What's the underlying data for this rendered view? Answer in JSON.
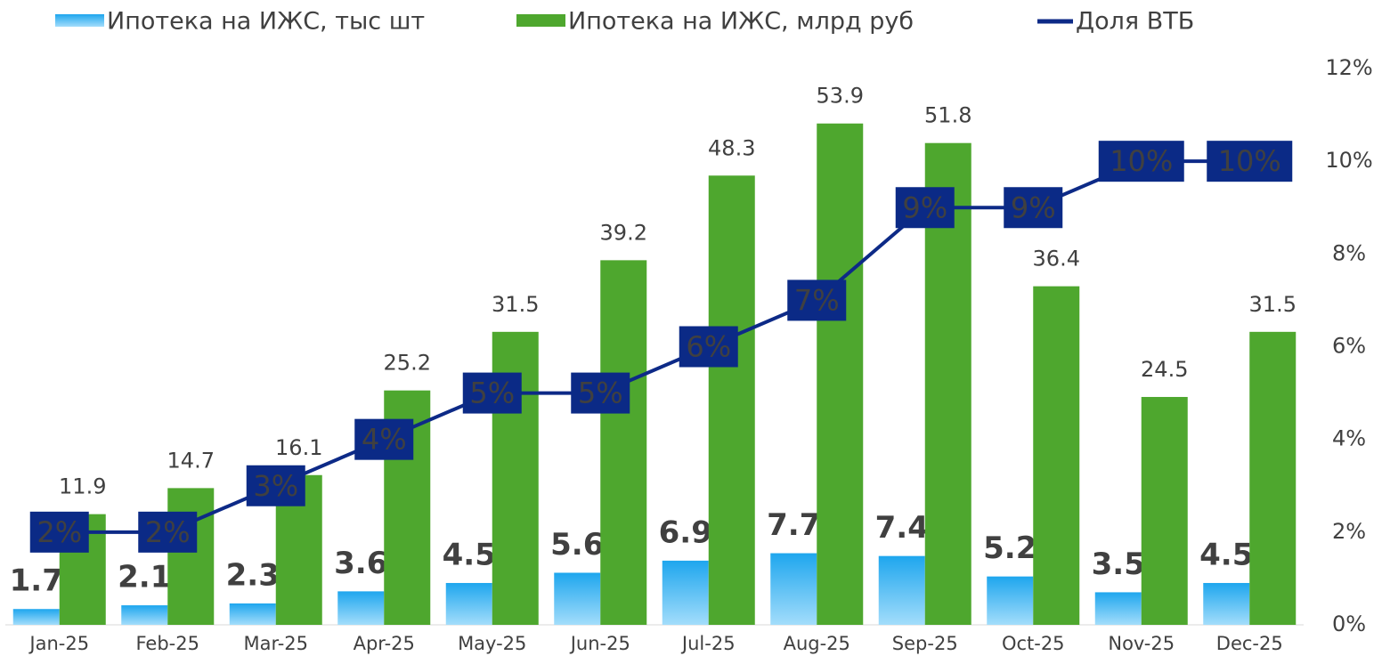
{
  "chart_data": {
    "type": "bar_line",
    "categories": [
      "Jan-25",
      "Feb-25",
      "Mar-25",
      "Apr-25",
      "May-25",
      "Jun-25",
      "Jul-25",
      "Aug-25",
      "Sep-25",
      "Oct-25",
      "Nov-25",
      "Dec-25"
    ],
    "series": [
      {
        "name": "Ипотека на ИЖС, тыс шт",
        "color": "#1ea6ee",
        "type": "bar",
        "values": [
          1.7,
          2.1,
          2.3,
          3.6,
          4.5,
          5.6,
          6.9,
          7.7,
          7.4,
          5.2,
          3.5,
          4.5
        ]
      },
      {
        "name": "Ипотека на ИЖС, млрд руб",
        "color": "#4ea72e",
        "type": "bar",
        "values": [
          11.9,
          14.7,
          16.1,
          25.2,
          31.5,
          39.2,
          48.3,
          53.9,
          51.8,
          36.4,
          24.5,
          31.5
        ]
      },
      {
        "name": "Доля ВТБ",
        "color": "#0d2a87",
        "type": "line",
        "axis": "y2",
        "values": [
          2,
          2,
          3,
          4,
          5,
          5,
          6,
          7,
          9,
          9,
          10,
          10
        ],
        "value_labels": [
          "2%",
          "2%",
          "3%",
          "4%",
          "5%",
          "5%",
          "6%",
          "7%",
          "9%",
          "9%",
          "10%",
          "10%"
        ]
      }
    ],
    "ylim": [
      0,
      60
    ],
    "y2lim": [
      0,
      12
    ],
    "y2ticks": [
      {
        "value": 0,
        "label": "0%"
      },
      {
        "value": 2,
        "label": "2%"
      },
      {
        "value": 4,
        "label": "4%"
      },
      {
        "value": 6,
        "label": "6%"
      },
      {
        "value": 8,
        "label": "8%"
      },
      {
        "value": 10,
        "label": "10%"
      },
      {
        "value": 12,
        "label": "12%"
      }
    ],
    "legend": "top"
  }
}
